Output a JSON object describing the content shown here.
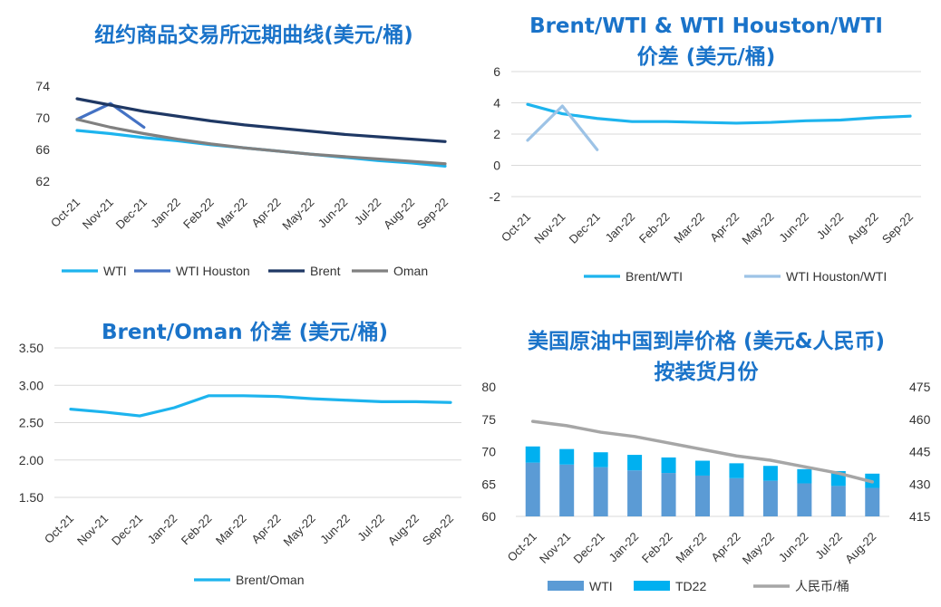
{
  "chart_data": [
    {
      "type": "line",
      "title": "纽约商品交易所远期曲线(美元/桶)",
      "categories": [
        "Oct-21",
        "Nov-21",
        "Dec-21",
        "Jan-22",
        "Feb-22",
        "Mar-22",
        "Apr-22",
        "May-22",
        "Jun-22",
        "Jul-22",
        "Aug-22",
        "Sep-22"
      ],
      "series": [
        {
          "name": "WTI",
          "color": "#1db4ee",
          "values": [
            68.4,
            68.0,
            67.5,
            67.1,
            66.6,
            66.2,
            65.8,
            65.4,
            65.0,
            64.6,
            64.3,
            63.9
          ]
        },
        {
          "name": "WTI Houston",
          "color": "#4472c4",
          "values": [
            69.8,
            71.8,
            68.8,
            null,
            null,
            null,
            null,
            null,
            null,
            null,
            null,
            null
          ]
        },
        {
          "name": "Brent",
          "color": "#1f3864",
          "values": [
            72.4,
            71.6,
            70.8,
            70.2,
            69.6,
            69.1,
            68.7,
            68.3,
            67.9,
            67.6,
            67.3,
            67.0
          ]
        },
        {
          "name": "Oman",
          "color": "#808080",
          "values": [
            69.8,
            68.8,
            68.0,
            67.3,
            66.7,
            66.2,
            65.8,
            65.4,
            65.1,
            64.8,
            64.5,
            64.2
          ]
        }
      ],
      "yticks": [
        62,
        66,
        70,
        74
      ],
      "ylim": [
        62,
        74
      ],
      "legend": "bottom"
    },
    {
      "type": "line",
      "title": "Brent/WTI & WTI Houston/WTI 价差 (美元/桶)",
      "categories": [
        "Oct-21",
        "Nov-21",
        "Dec-21",
        "Jan-22",
        "Feb-22",
        "Mar-22",
        "Apr-22",
        "May-22",
        "Jun-22",
        "Jul-22",
        "Aug-22",
        "Sep-22"
      ],
      "series": [
        {
          "name": "Brent/WTI",
          "color": "#1db4ee",
          "values": [
            3.9,
            3.3,
            3.0,
            2.8,
            2.8,
            2.75,
            2.7,
            2.75,
            2.85,
            2.9,
            3.05,
            3.15
          ]
        },
        {
          "name": "WTI Houston/WTI",
          "color": "#9dc3e6",
          "values": [
            1.6,
            3.8,
            1.0,
            null,
            null,
            null,
            null,
            null,
            null,
            null,
            null,
            null
          ]
        }
      ],
      "yticks": [
        "-2",
        "0",
        "2",
        "4",
        "6"
      ],
      "ylim": [
        -2,
        6
      ],
      "legend": "bottom"
    },
    {
      "type": "line",
      "title": "Brent/Oman 价差 (美元/桶)",
      "categories": [
        "Oct-21",
        "Nov-21",
        "Dec-21",
        "Jan-22",
        "Feb-22",
        "Mar-22",
        "Apr-22",
        "May-22",
        "Jun-22",
        "Jul-22",
        "Aug-22",
        "Sep-22"
      ],
      "series": [
        {
          "name": "Brent/Oman",
          "color": "#1db4ee",
          "values": [
            2.68,
            2.64,
            2.59,
            2.7,
            2.86,
            2.86,
            2.85,
            2.82,
            2.8,
            2.78,
            2.78,
            2.77
          ]
        }
      ],
      "yticks": [
        "1.50",
        "2.00",
        "2.50",
        "3.00",
        "3.50"
      ],
      "ylim": [
        1.5,
        3.5
      ],
      "legend": "bottom"
    },
    {
      "type": "bar",
      "title": "美国原油中国到岸价格 (美元&人民币) 按装货月份",
      "categories": [
        "Oct-21",
        "Nov-21",
        "Dec-21",
        "Jan-22",
        "Feb-22",
        "Mar-22",
        "Apr-22",
        "May-22",
        "Jun-22",
        "Jul-22",
        "Aug-22"
      ],
      "series": [
        {
          "name": "WTI",
          "color": "#5b9bd5",
          "values": [
            68.3,
            68.0,
            67.6,
            67.1,
            66.7,
            66.3,
            65.9,
            65.5,
            65.1,
            64.7,
            64.4
          ]
        },
        {
          "name": "TD22",
          "color": "#00b0f0",
          "values": [
            2.5,
            2.4,
            2.3,
            2.4,
            2.4,
            2.3,
            2.3,
            2.3,
            2.2,
            2.3,
            2.2
          ]
        },
        {
          "name": "人民币/桶",
          "color": "#a6a6a6",
          "axis": "right",
          "values": [
            459.0,
            457.0,
            454.0,
            452.0,
            449.0,
            446.0,
            443.0,
            441.0,
            438.0,
            435.0,
            431.0
          ]
        }
      ],
      "yticks": [
        60,
        65,
        70,
        75,
        80
      ],
      "ylim": [
        60,
        80
      ],
      "y2ticks": [
        415,
        430,
        445,
        460,
        475
      ],
      "y2lim": [
        415,
        475
      ],
      "stacked": true,
      "legend": "bottom"
    }
  ]
}
